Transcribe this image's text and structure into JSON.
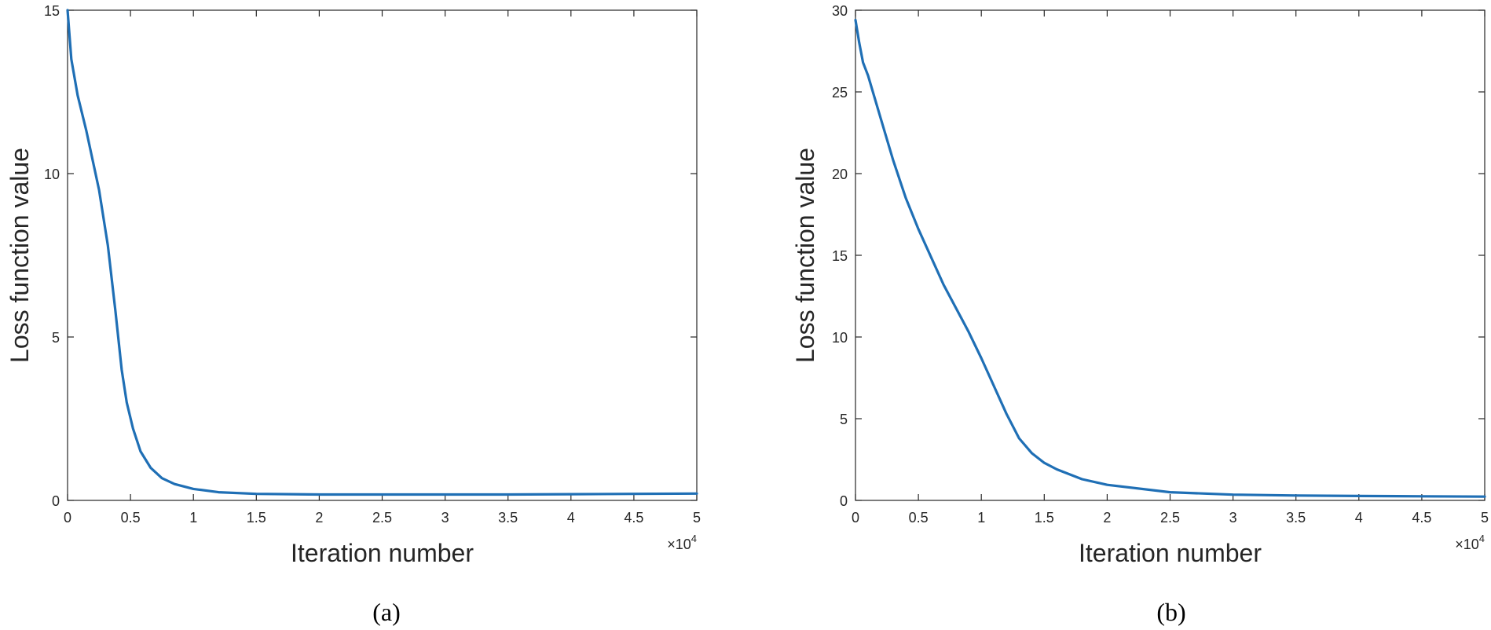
{
  "chart_data": [
    {
      "type": "line",
      "caption": "(a)",
      "title": "",
      "xlabel": "Iteration number",
      "ylabel": "Loss function value",
      "x_multiplier_base": "×10",
      "x_multiplier_exp": "4",
      "xlim": [
        0,
        5
      ],
      "ylim": [
        0,
        15
      ],
      "xticks": [
        0,
        0.5,
        1,
        1.5,
        2,
        2.5,
        3,
        3.5,
        4,
        4.5,
        5
      ],
      "xtick_labels": [
        "0",
        "0.5",
        "1",
        "1.5",
        "2",
        "2.5",
        "3",
        "3.5",
        "4",
        "4.5",
        "5"
      ],
      "yticks": [
        0,
        5,
        10,
        15
      ],
      "ytick_labels": [
        "0",
        "5",
        "10",
        "15"
      ],
      "grid": false,
      "line_color": "#1f6fb5",
      "series": [
        {
          "x": [
            0,
            0.03,
            0.08,
            0.15,
            0.25,
            0.32,
            0.38,
            0.43,
            0.47,
            0.52,
            0.58,
            0.66,
            0.75,
            0.85,
            1.0,
            1.2,
            1.5,
            2.0,
            2.5,
            3.0,
            3.5,
            4.0,
            4.5,
            5.0
          ],
          "y": [
            15.0,
            13.5,
            12.4,
            11.3,
            9.5,
            7.8,
            5.8,
            4.0,
            3.0,
            2.2,
            1.5,
            1.0,
            0.68,
            0.5,
            0.35,
            0.25,
            0.2,
            0.18,
            0.18,
            0.18,
            0.18,
            0.19,
            0.2,
            0.21
          ]
        }
      ]
    },
    {
      "type": "line",
      "caption": "(b)",
      "title": "",
      "xlabel": "Iteration number",
      "ylabel": "Loss function value",
      "x_multiplier_base": "×10",
      "x_multiplier_exp": "4",
      "xlim": [
        0,
        5
      ],
      "ylim": [
        0,
        30
      ],
      "xticks": [
        0,
        0.5,
        1,
        1.5,
        2,
        2.5,
        3,
        3.5,
        4,
        4.5,
        5
      ],
      "xtick_labels": [
        "0",
        "0.5",
        "1",
        "1.5",
        "2",
        "2.5",
        "3",
        "3.5",
        "4",
        "4.5",
        "5"
      ],
      "yticks": [
        0,
        5,
        10,
        15,
        20,
        25,
        30
      ],
      "ytick_labels": [
        "0",
        "5",
        "10",
        "15",
        "20",
        "25",
        "30"
      ],
      "grid": false,
      "line_color": "#1f6fb5",
      "series": [
        {
          "x": [
            0,
            0.03,
            0.06,
            0.1,
            0.2,
            0.3,
            0.4,
            0.5,
            0.7,
            0.9,
            1.0,
            1.1,
            1.2,
            1.3,
            1.4,
            1.5,
            1.6,
            1.8,
            2.0,
            2.5,
            3.0,
            3.5,
            4.0,
            4.5,
            5.0
          ],
          "y": [
            29.4,
            28.0,
            26.8,
            26.0,
            23.4,
            20.8,
            18.5,
            16.6,
            13.2,
            10.3,
            8.7,
            7.0,
            5.3,
            3.8,
            2.9,
            2.3,
            1.9,
            1.3,
            0.95,
            0.5,
            0.35,
            0.3,
            0.27,
            0.25,
            0.23
          ]
        }
      ]
    }
  ]
}
